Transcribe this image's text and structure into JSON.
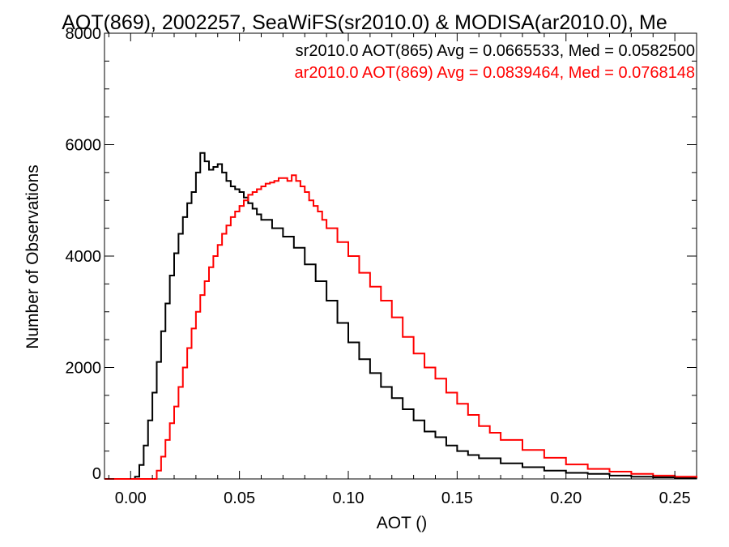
{
  "chart_data": {
    "type": "line",
    "title": "AOT(869), 2002257, SeaWiFS(sr2010.0) & MODISA(ar2010.0), Me",
    "xlabel": "AOT ()",
    "ylabel": "Number of Observations",
    "xlim": [
      -0.012,
      0.26
    ],
    "ylim": [
      0,
      8000
    ],
    "xticks": [
      0.0,
      0.05,
      0.1,
      0.15,
      0.2,
      0.25
    ],
    "xtick_labels": [
      "0.00",
      "0.05",
      "0.10",
      "0.15",
      "0.20",
      "0.25"
    ],
    "yticks": [
      0,
      2000,
      4000,
      6000,
      8000
    ],
    "ytick_labels": [
      "0",
      "2000",
      "4000",
      "6000",
      "8000"
    ],
    "grid": false,
    "legend_position": "top-right",
    "style": "step",
    "series": [
      {
        "name": "sr2010.0 AOT(865) Avg = 0.0665533, Med = 0.0582500",
        "color": "#000000",
        "points": [
          [
            -0.012,
            0
          ],
          [
            0.0,
            0
          ],
          [
            0.002,
            40
          ],
          [
            0.004,
            250
          ],
          [
            0.006,
            600
          ],
          [
            0.008,
            1050
          ],
          [
            0.01,
            1550
          ],
          [
            0.012,
            2100
          ],
          [
            0.014,
            2650
          ],
          [
            0.016,
            3150
          ],
          [
            0.018,
            3650
          ],
          [
            0.02,
            4050
          ],
          [
            0.022,
            4400
          ],
          [
            0.024,
            4700
          ],
          [
            0.026,
            4950
          ],
          [
            0.028,
            5150
          ],
          [
            0.03,
            5500
          ],
          [
            0.032,
            5850
          ],
          [
            0.034,
            5700
          ],
          [
            0.036,
            5550
          ],
          [
            0.038,
            5600
          ],
          [
            0.04,
            5650
          ],
          [
            0.042,
            5500
          ],
          [
            0.044,
            5350
          ],
          [
            0.046,
            5250
          ],
          [
            0.048,
            5200
          ],
          [
            0.05,
            5150
          ],
          [
            0.052,
            5050
          ],
          [
            0.054,
            4950
          ],
          [
            0.056,
            4850
          ],
          [
            0.058,
            4750
          ],
          [
            0.06,
            4650
          ],
          [
            0.065,
            4500
          ],
          [
            0.07,
            4350
          ],
          [
            0.075,
            4150
          ],
          [
            0.08,
            3850
          ],
          [
            0.085,
            3550
          ],
          [
            0.09,
            3200
          ],
          [
            0.095,
            2800
          ],
          [
            0.1,
            2450
          ],
          [
            0.105,
            2150
          ],
          [
            0.11,
            1900
          ],
          [
            0.115,
            1650
          ],
          [
            0.12,
            1450
          ],
          [
            0.125,
            1250
          ],
          [
            0.13,
            1050
          ],
          [
            0.135,
            850
          ],
          [
            0.14,
            750
          ],
          [
            0.145,
            600
          ],
          [
            0.15,
            500
          ],
          [
            0.155,
            430
          ],
          [
            0.16,
            370
          ],
          [
            0.17,
            280
          ],
          [
            0.18,
            210
          ],
          [
            0.19,
            150
          ],
          [
            0.2,
            110
          ],
          [
            0.21,
            90
          ],
          [
            0.22,
            60
          ],
          [
            0.23,
            40
          ],
          [
            0.24,
            30
          ],
          [
            0.25,
            20
          ],
          [
            0.26,
            10
          ]
        ]
      },
      {
        "name": "ar2010.0 AOT(869) Avg = 0.0839464, Med = 0.0768148",
        "color": "#ff0000",
        "points": [
          [
            -0.012,
            0
          ],
          [
            0.01,
            0
          ],
          [
            0.012,
            150
          ],
          [
            0.014,
            400
          ],
          [
            0.016,
            700
          ],
          [
            0.018,
            1000
          ],
          [
            0.02,
            1300
          ],
          [
            0.022,
            1650
          ],
          [
            0.024,
            2000
          ],
          [
            0.026,
            2350
          ],
          [
            0.028,
            2700
          ],
          [
            0.03,
            3000
          ],
          [
            0.032,
            3300
          ],
          [
            0.034,
            3550
          ],
          [
            0.036,
            3800
          ],
          [
            0.038,
            4000
          ],
          [
            0.04,
            4200
          ],
          [
            0.042,
            4400
          ],
          [
            0.044,
            4550
          ],
          [
            0.046,
            4700
          ],
          [
            0.048,
            4800
          ],
          [
            0.05,
            4900
          ],
          [
            0.052,
            5000
          ],
          [
            0.054,
            5100
          ],
          [
            0.056,
            5150
          ],
          [
            0.058,
            5200
          ],
          [
            0.06,
            5250
          ],
          [
            0.062,
            5300
          ],
          [
            0.064,
            5320
          ],
          [
            0.066,
            5350
          ],
          [
            0.068,
            5400
          ],
          [
            0.07,
            5400
          ],
          [
            0.072,
            5350
          ],
          [
            0.074,
            5450
          ],
          [
            0.076,
            5350
          ],
          [
            0.078,
            5250
          ],
          [
            0.08,
            5150
          ],
          [
            0.082,
            5000
          ],
          [
            0.084,
            4900
          ],
          [
            0.086,
            4800
          ],
          [
            0.088,
            4650
          ],
          [
            0.09,
            4500
          ],
          [
            0.095,
            4250
          ],
          [
            0.1,
            4000
          ],
          [
            0.105,
            3700
          ],
          [
            0.11,
            3450
          ],
          [
            0.115,
            3200
          ],
          [
            0.12,
            2900
          ],
          [
            0.125,
            2550
          ],
          [
            0.13,
            2250
          ],
          [
            0.135,
            2000
          ],
          [
            0.14,
            1800
          ],
          [
            0.145,
            1550
          ],
          [
            0.15,
            1350
          ],
          [
            0.155,
            1150
          ],
          [
            0.16,
            950
          ],
          [
            0.165,
            830
          ],
          [
            0.17,
            700
          ],
          [
            0.18,
            520
          ],
          [
            0.19,
            380
          ],
          [
            0.2,
            260
          ],
          [
            0.21,
            180
          ],
          [
            0.22,
            130
          ],
          [
            0.23,
            90
          ],
          [
            0.24,
            60
          ],
          [
            0.25,
            40
          ],
          [
            0.26,
            20
          ]
        ]
      }
    ]
  }
}
